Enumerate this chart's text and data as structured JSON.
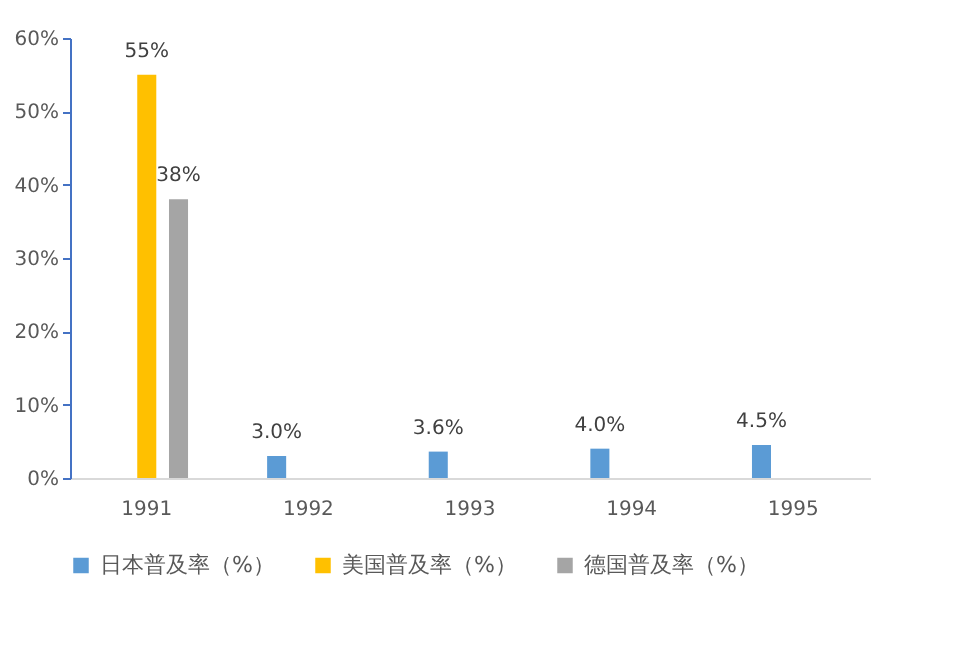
{
  "chart_data": {
    "type": "bar",
    "categories": [
      "1991",
      "1992",
      "1993",
      "1994",
      "1995"
    ],
    "series": [
      {
        "name": "日本普及率（%）",
        "color": "#5b9bd5",
        "values": [
          null,
          3.0,
          3.6,
          4.0,
          4.5
        ],
        "value_labels": [
          null,
          "3.0%",
          "3.6%",
          "4.0%",
          "4.5%"
        ]
      },
      {
        "name": "美国普及率（%）",
        "color": "#ffc000",
        "values": [
          55,
          null,
          null,
          null,
          null
        ],
        "value_labels": [
          "55%",
          null,
          null,
          null,
          null
        ]
      },
      {
        "name": "德国普及率（%）",
        "color": "#a5a5a5",
        "values": [
          38,
          null,
          null,
          null,
          null
        ],
        "value_labels": [
          "38%",
          null,
          null,
          null,
          null
        ]
      }
    ],
    "ylim": [
      0,
      60
    ],
    "yticks": [
      {
        "value": 0,
        "label": "0%"
      },
      {
        "value": 10,
        "label": "10%"
      },
      {
        "value": 20,
        "label": "20%"
      },
      {
        "value": 30,
        "label": "30%"
      },
      {
        "value": 40,
        "label": "40%"
      },
      {
        "value": 50,
        "label": "50%"
      },
      {
        "value": 60,
        "label": "60%"
      }
    ],
    "grid": false,
    "legend": "bottom"
  }
}
